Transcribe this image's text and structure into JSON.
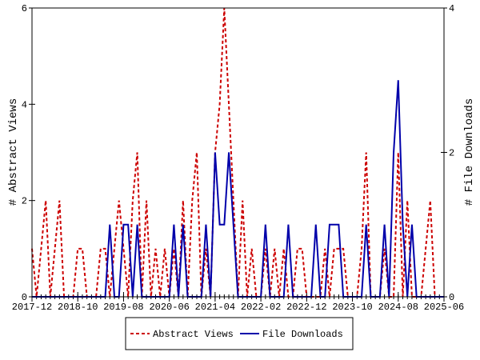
{
  "chart_data": {
    "type": "line",
    "x": [
      "2017-12",
      "2018-01",
      "2018-02",
      "2018-03",
      "2018-04",
      "2018-05",
      "2018-06",
      "2018-07",
      "2018-08",
      "2018-09",
      "2018-10",
      "2018-11",
      "2018-12",
      "2019-01",
      "2019-02",
      "2019-03",
      "2019-04",
      "2019-05",
      "2019-06",
      "2019-07",
      "2019-08",
      "2019-09",
      "2019-10",
      "2019-11",
      "2019-12",
      "2020-01",
      "2020-02",
      "2020-03",
      "2020-04",
      "2020-05",
      "2020-06",
      "2020-07",
      "2020-08",
      "2020-09",
      "2020-10",
      "2020-11",
      "2020-12",
      "2021-01",
      "2021-02",
      "2021-03",
      "2021-04",
      "2021-05",
      "2021-06",
      "2021-07",
      "2021-08",
      "2021-09",
      "2021-10",
      "2021-11",
      "2021-12",
      "2022-01",
      "2022-02",
      "2022-03",
      "2022-04",
      "2022-05",
      "2022-06",
      "2022-07",
      "2022-08",
      "2022-09",
      "2022-10",
      "2022-11",
      "2022-12",
      "2023-01",
      "2023-02",
      "2023-03",
      "2023-04",
      "2023-05",
      "2023-06",
      "2023-07",
      "2023-08",
      "2023-09",
      "2023-10",
      "2023-11",
      "2023-12",
      "2024-01",
      "2024-02",
      "2024-03",
      "2024-04",
      "2024-05",
      "2024-06",
      "2024-07",
      "2024-08",
      "2024-09",
      "2024-10",
      "2024-11",
      "2024-12",
      "2025-01",
      "2025-02",
      "2025-03",
      "2025-04",
      "2025-05",
      "2025-06"
    ],
    "xticks": [
      "2017-12",
      "2018-10",
      "2019-08",
      "2020-06",
      "2021-04",
      "2022-02",
      "2022-12",
      "2023-10",
      "2024-08",
      "2025-06"
    ],
    "ylabel": "# Abstract Views",
    "ylim": [
      0,
      6
    ],
    "yticks": [
      0,
      2,
      4,
      6
    ],
    "y2label": "# File Downloads",
    "y2lim": [
      0,
      4
    ],
    "y2ticks": [
      0,
      2,
      4
    ],
    "legend": "bottom",
    "series": [
      {
        "name": "Abstract Views",
        "color": "#cc0000",
        "dash": true,
        "values": [
          1,
          0,
          1,
          2,
          0,
          1,
          2,
          0,
          0,
          0,
          1,
          1,
          0,
          0,
          0,
          1,
          1,
          0,
          1,
          2,
          1,
          0,
          2,
          3,
          0,
          2,
          0,
          1,
          0,
          1,
          0,
          1,
          0,
          2,
          0,
          2,
          3,
          0,
          1,
          0,
          3,
          4,
          6,
          4,
          2,
          0,
          2,
          0,
          1,
          0,
          0,
          1,
          0,
          1,
          0,
          1,
          0,
          0,
          1,
          1,
          0,
          0,
          0,
          0,
          1,
          0,
          1,
          1,
          1,
          0,
          0,
          0,
          1,
          3,
          0,
          0,
          0,
          1,
          0,
          0,
          3,
          0,
          2,
          0,
          0,
          0,
          1,
          2,
          0,
          0,
          0
        ]
      },
      {
        "name": "File Downloads",
        "color": "#0000aa",
        "dash": false,
        "axis": "y2",
        "values": [
          0,
          0,
          0,
          0,
          0,
          0,
          0,
          0,
          0,
          0,
          0,
          0,
          0,
          0,
          0,
          0,
          0,
          1,
          0,
          0,
          1,
          1,
          0,
          1,
          0,
          0,
          0,
          0,
          0,
          0,
          0,
          1,
          0,
          1,
          0,
          0,
          0,
          0,
          1,
          0,
          2,
          1,
          1,
          2,
          1,
          0,
          0,
          0,
          0,
          0,
          0,
          1,
          0,
          0,
          0,
          0,
          1,
          0,
          0,
          0,
          0,
          0,
          1,
          0,
          0,
          1,
          1,
          1,
          0,
          0,
          0,
          0,
          0,
          1,
          0,
          0,
          0,
          1,
          0,
          2,
          3,
          1,
          0,
          1,
          0,
          0,
          0,
          0,
          0,
          0,
          0
        ]
      }
    ]
  }
}
